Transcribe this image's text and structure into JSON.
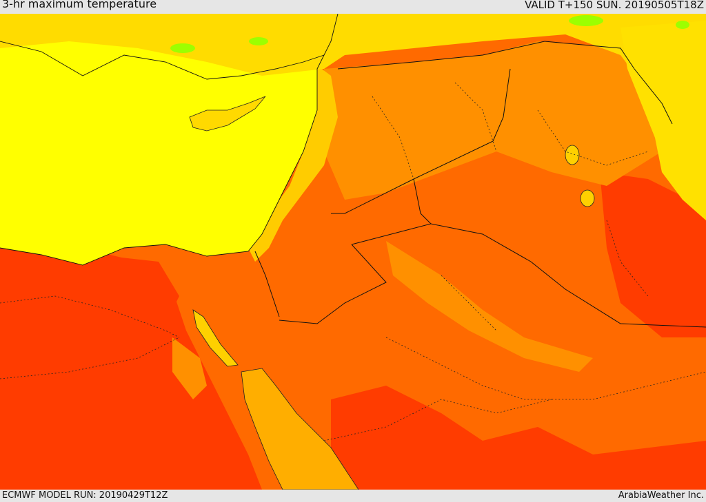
{
  "header": {
    "title": "3-hr maximum temperature",
    "valid": "VALID T+150 SUN. 20190505T18Z"
  },
  "footer": {
    "model_run": "ECMWF MODEL RUN: 20190429T12Z",
    "credit": "ArabiaWeather Inc."
  },
  "colors": {
    "land_hot": "#ff6a00",
    "land_very_hot": "#ff3c00",
    "land_warm": "#ff9000",
    "land_mild": "#ffb000",
    "sea_cool": "#ffff00",
    "coastal": "#ffdc00",
    "cool_green": "#9cff00",
    "red_sea": "#ffae00"
  }
}
